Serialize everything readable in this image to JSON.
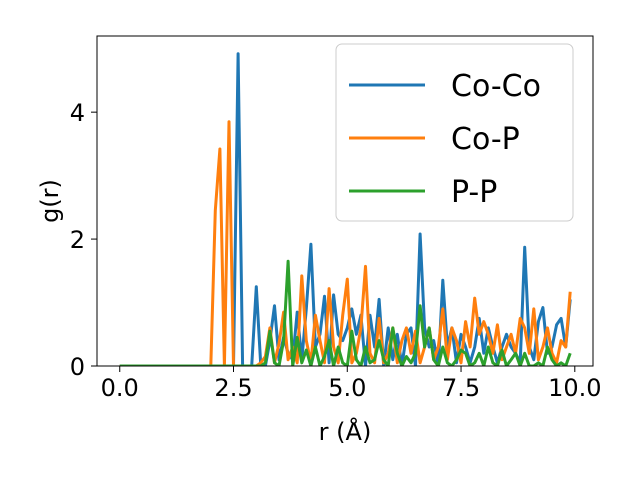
{
  "chart_data": {
    "type": "line",
    "xlabel": "r (Å)",
    "ylabel": "g(r)",
    "xlim": [
      -0.5,
      10.4
    ],
    "ylim": [
      0,
      5.2
    ],
    "xticks": [
      0.0,
      2.5,
      5.0,
      7.5,
      10.0
    ],
    "xtick_labels": [
      "0.0",
      "2.5",
      "5.0",
      "7.5",
      "10.0"
    ],
    "yticks": [
      0,
      2,
      4
    ],
    "ytick_labels": [
      "0",
      "2",
      "4"
    ],
    "grid": false,
    "legend_position": "top-right",
    "series": [
      {
        "name": "Co-Co",
        "color": "#1f77b4",
        "x": [
          0.0,
          2.4,
          2.5,
          2.6,
          2.7,
          2.8,
          2.9,
          3.0,
          3.1,
          3.2,
          3.3,
          3.4,
          3.5,
          3.6,
          3.7,
          3.8,
          3.9,
          4.0,
          4.1,
          4.2,
          4.3,
          4.4,
          4.5,
          4.6,
          4.7,
          4.8,
          4.9,
          5.0,
          5.1,
          5.2,
          5.3,
          5.4,
          5.5,
          5.6,
          5.7,
          5.8,
          5.9,
          6.0,
          6.1,
          6.2,
          6.3,
          6.4,
          6.5,
          6.6,
          6.7,
          6.8,
          6.9,
          7.0,
          7.1,
          7.2,
          7.3,
          7.4,
          7.5,
          7.6,
          7.7,
          7.8,
          7.9,
          8.0,
          8.1,
          8.2,
          8.3,
          8.4,
          8.5,
          8.6,
          8.7,
          8.8,
          8.9,
          9.0,
          9.1,
          9.2,
          9.3,
          9.4,
          9.5,
          9.6,
          9.7,
          9.8,
          9.9
        ],
        "y": [
          0,
          0,
          0,
          4.92,
          0,
          0,
          0,
          1.25,
          0,
          0,
          0.4,
          0.95,
          0.1,
          0.45,
          0.2,
          0.1,
          0.85,
          0.1,
          0.9,
          1.92,
          0.3,
          0.5,
          1.1,
          0.05,
          1.12,
          0.5,
          0.4,
          0.6,
          0.9,
          0.5,
          0.8,
          0,
          0.8,
          0.3,
          1.05,
          0,
          0.6,
          0.1,
          0.5,
          0,
          0.5,
          0.6,
          0,
          2.08,
          0.6,
          0.3,
          0.4,
          0,
          1.35,
          0.3,
          0.6,
          0.05,
          0.5,
          0.3,
          0.05,
          0.3,
          0.75,
          0.2,
          0.6,
          0.3,
          0.05,
          0.3,
          0.5,
          0.3,
          0.2,
          0.05,
          1.87,
          0.3,
          0.1,
          0.7,
          0.92,
          0.2,
          0.3,
          0.65,
          0.75,
          0.3,
          1.05
        ]
      },
      {
        "name": "Co-P",
        "color": "#ff7f0e",
        "x": [
          0.0,
          2.0,
          2.1,
          2.2,
          2.3,
          2.4,
          2.5,
          2.9,
          3.0,
          3.1,
          3.2,
          3.3,
          3.4,
          3.5,
          3.6,
          3.7,
          3.8,
          3.9,
          4.0,
          4.1,
          4.2,
          4.3,
          4.4,
          4.5,
          4.6,
          4.7,
          4.8,
          4.9,
          5.0,
          5.1,
          5.2,
          5.3,
          5.4,
          5.5,
          5.6,
          5.7,
          5.8,
          5.9,
          6.0,
          6.1,
          6.2,
          6.3,
          6.4,
          6.5,
          6.6,
          6.7,
          6.8,
          6.9,
          7.0,
          7.1,
          7.2,
          7.3,
          7.4,
          7.5,
          7.6,
          7.7,
          7.8,
          7.9,
          8.0,
          8.1,
          8.2,
          8.3,
          8.4,
          8.5,
          8.6,
          8.7,
          8.8,
          8.9,
          9.0,
          9.1,
          9.2,
          9.3,
          9.4,
          9.5,
          9.6,
          9.7,
          9.8,
          9.9
        ],
        "y": [
          0,
          0,
          2.45,
          3.42,
          0,
          3.85,
          0,
          0,
          0,
          0.05,
          0.15,
          0.6,
          0.05,
          0.35,
          0.85,
          0.1,
          0.3,
          0.05,
          1.42,
          0.4,
          0.05,
          0.8,
          0.4,
          0.05,
          1.22,
          0.3,
          0.05,
          0.8,
          1.37,
          0.05,
          0.2,
          0.6,
          1.57,
          0.2,
          0.05,
          0.75,
          0.05,
          0.2,
          0.6,
          0.05,
          0.4,
          0.6,
          0.2,
          0.55,
          0.05,
          0.3,
          0.6,
          0.1,
          0.3,
          0.9,
          0.1,
          0.6,
          0.4,
          0.05,
          0.7,
          0.3,
          1.07,
          0.5,
          0.7,
          0.5,
          0.2,
          0.65,
          0.1,
          0.3,
          0.5,
          0.2,
          0.75,
          0.6,
          0.2,
          0.9,
          0.1,
          0.3,
          0.6,
          0.2,
          0.05,
          0.4,
          0.3,
          1.17
        ]
      },
      {
        "name": "P-P",
        "color": "#2ca02c",
        "x": [
          0.0,
          3.1,
          3.2,
          3.3,
          3.4,
          3.5,
          3.6,
          3.7,
          3.8,
          3.9,
          4.0,
          4.1,
          4.2,
          4.3,
          4.4,
          4.5,
          4.6,
          4.7,
          4.8,
          4.9,
          5.0,
          5.1,
          5.2,
          5.3,
          5.4,
          5.5,
          5.6,
          5.7,
          5.8,
          5.9,
          6.0,
          6.1,
          6.2,
          6.3,
          6.4,
          6.5,
          6.6,
          6.7,
          6.8,
          6.9,
          7.0,
          7.1,
          7.2,
          7.3,
          7.4,
          7.5,
          7.6,
          7.7,
          7.8,
          7.9,
          8.0,
          8.1,
          8.2,
          8.3,
          8.4,
          8.5,
          8.6,
          8.7,
          8.8,
          8.9,
          9.0,
          9.1,
          9.2,
          9.3,
          9.4,
          9.5,
          9.6,
          9.7,
          9.8,
          9.9
        ],
        "y": [
          0,
          0,
          0.05,
          0.55,
          0.05,
          0,
          0.4,
          1.65,
          0,
          0.45,
          0.05,
          0.25,
          0,
          0.3,
          0,
          0.15,
          0.4,
          0,
          0.3,
          0.05,
          0,
          0.55,
          0.1,
          0,
          0.3,
          0.05,
          0.1,
          0.4,
          0.1,
          0,
          0.6,
          0.2,
          0,
          0.15,
          0.05,
          0.2,
          0.95,
          0.3,
          0.6,
          0.1,
          0,
          0.3,
          0.05,
          0,
          0.1,
          0.25,
          0.2,
          0,
          0.05,
          0.2,
          0,
          0.3,
          0.05,
          0,
          0.25,
          0,
          0.1,
          0.2,
          0,
          0.2,
          0,
          0,
          0.05,
          0,
          0.3,
          0.1,
          0,
          0.05,
          0,
          0.2
        ]
      }
    ]
  }
}
